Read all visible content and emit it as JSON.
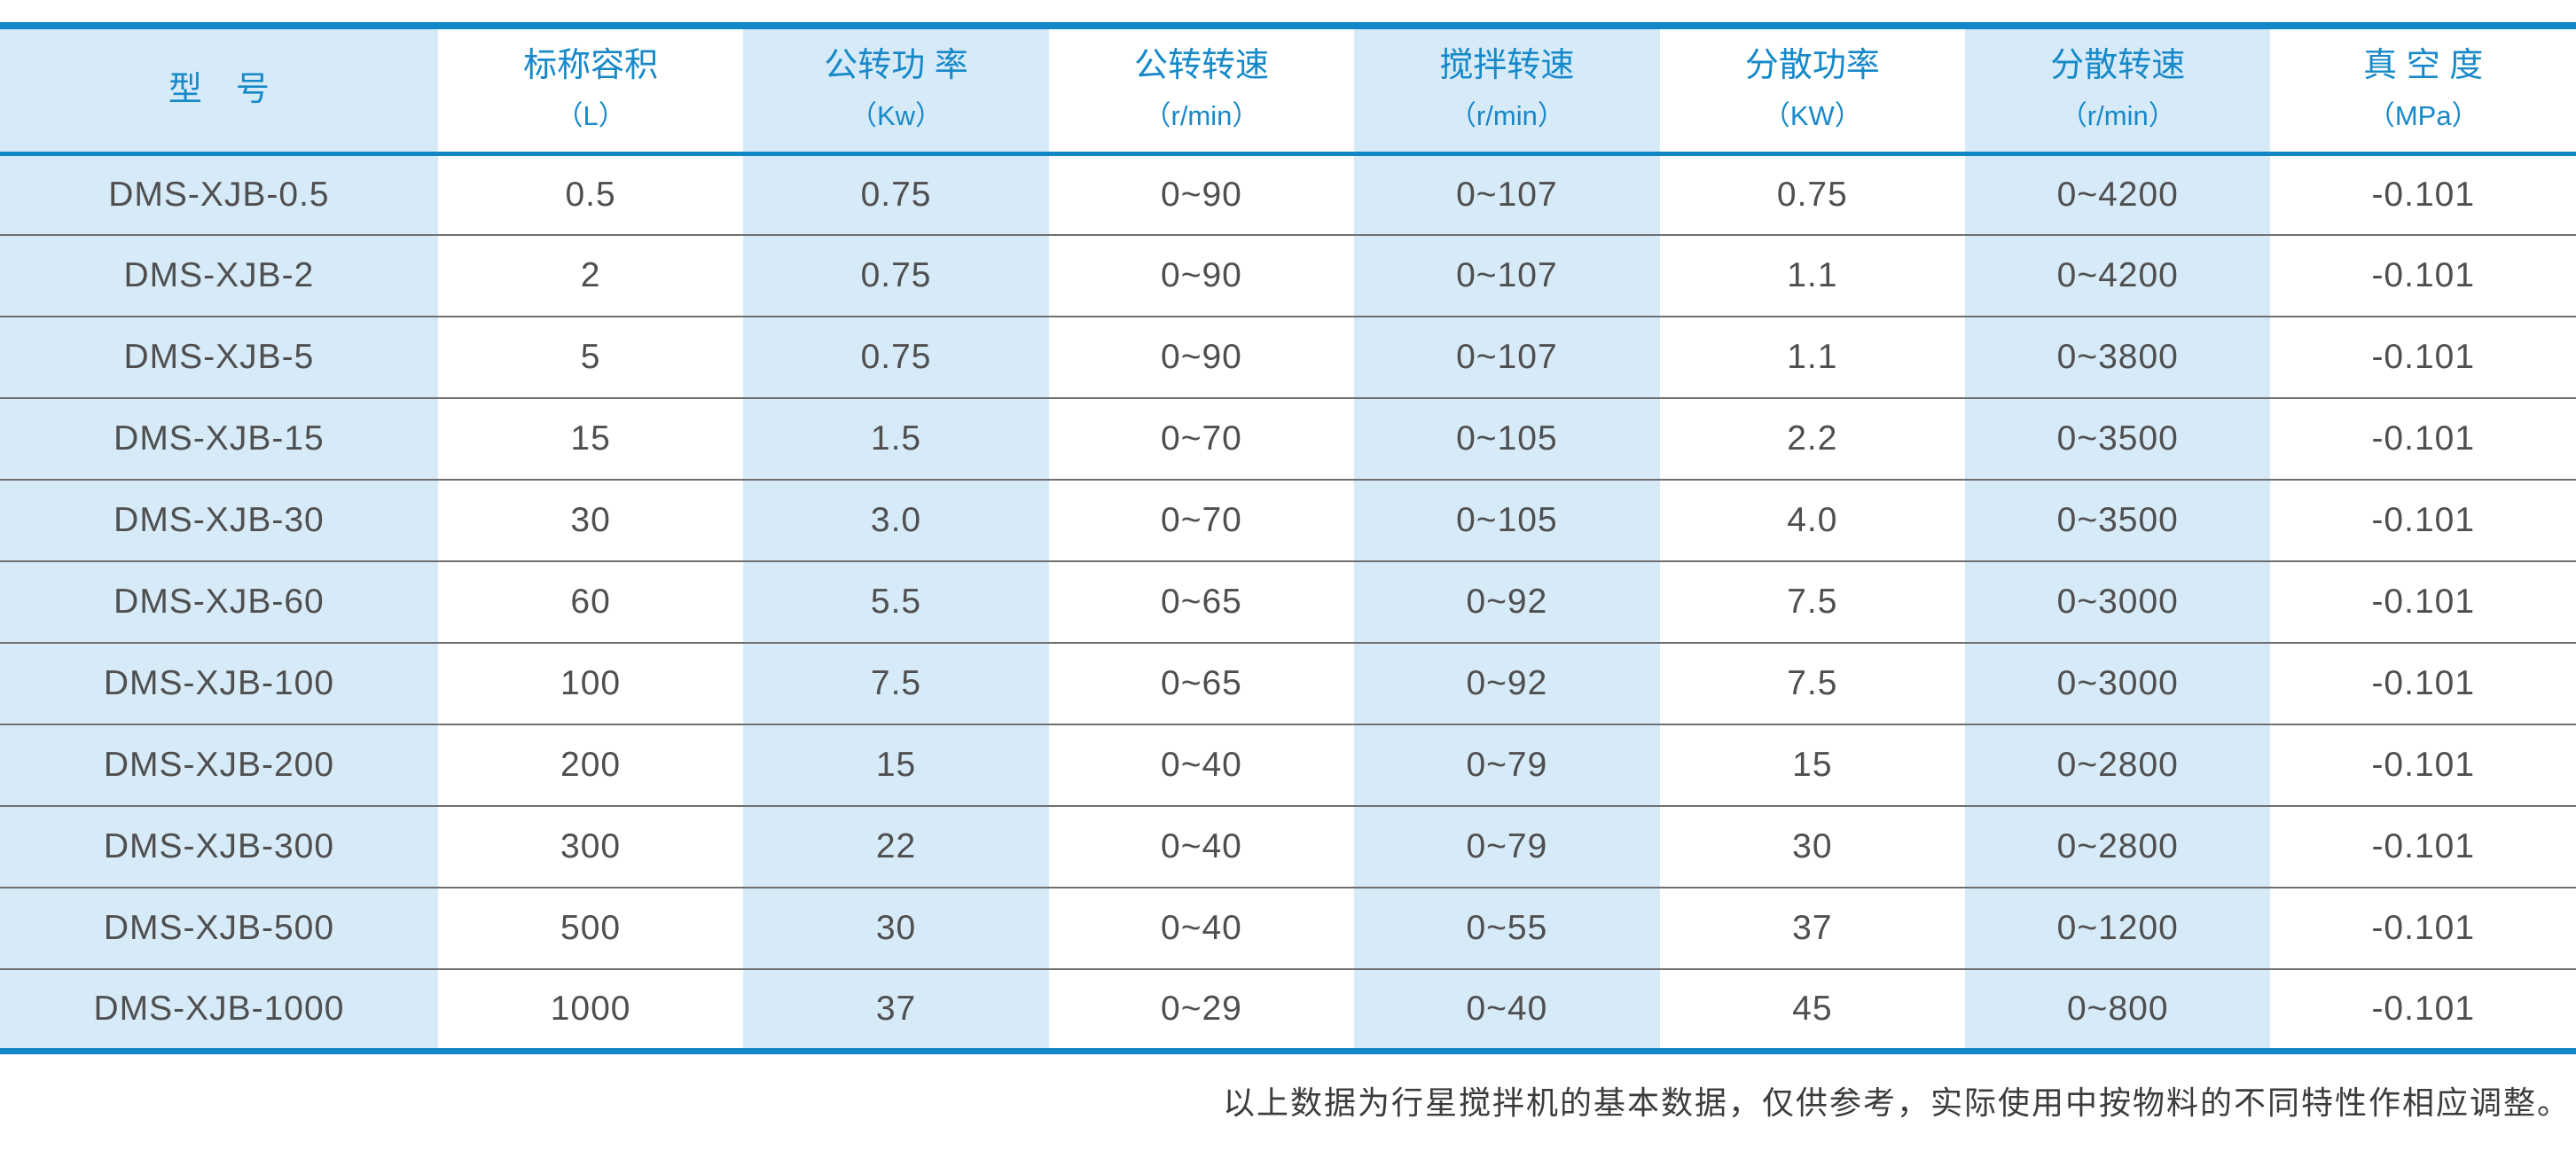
{
  "colors": {
    "accent_blue": "#1287c8",
    "header_text": "#1789c9",
    "stripe_blue": "#d6eaf8",
    "row_line": "#6f6f6f",
    "data_text": "#4f4f4f",
    "footer_text": "#3c3c3c"
  },
  "chart_data": {
    "type": "table",
    "columns": [
      {
        "label": "型　号",
        "unit": ""
      },
      {
        "label": "标称容积",
        "unit": "（L）"
      },
      {
        "label": "公转功 率",
        "unit": "（Kw）"
      },
      {
        "label": "公转转速",
        "unit": "（r/min）"
      },
      {
        "label": "搅拌转速",
        "unit": "（r/min）"
      },
      {
        "label": "分散功率",
        "unit": "（KW）"
      },
      {
        "label": "分散转速",
        "unit": "（r/min）"
      },
      {
        "label": "真 空 度",
        "unit": "（MPa）"
      }
    ],
    "rows": [
      [
        "DMS-XJB-0.5",
        "0.5",
        "0.75",
        "0~90",
        "0~107",
        "0.75",
        "0~4200",
        "-0.101"
      ],
      [
        "DMS-XJB-2",
        "2",
        "0.75",
        "0~90",
        "0~107",
        "1.1",
        "0~4200",
        "-0.101"
      ],
      [
        "DMS-XJB-5",
        "5",
        "0.75",
        "0~90",
        "0~107",
        "1.1",
        "0~3800",
        "-0.101"
      ],
      [
        "DMS-XJB-15",
        "15",
        "1.5",
        "0~70",
        "0~105",
        "2.2",
        "0~3500",
        "-0.101"
      ],
      [
        "DMS-XJB-30",
        "30",
        "3.0",
        "0~70",
        "0~105",
        "4.0",
        "0~3500",
        "-0.101"
      ],
      [
        "DMS-XJB-60",
        "60",
        "5.5",
        "0~65",
        "0~92",
        "7.5",
        "0~3000",
        "-0.101"
      ],
      [
        "DMS-XJB-100",
        "100",
        "7.5",
        "0~65",
        "0~92",
        "7.5",
        "0~3000",
        "-0.101"
      ],
      [
        "DMS-XJB-200",
        "200",
        "15",
        "0~40",
        "0~79",
        "15",
        "0~2800",
        "-0.101"
      ],
      [
        "DMS-XJB-300",
        "300",
        "22",
        "0~40",
        "0~79",
        "30",
        "0~2800",
        "-0.101"
      ],
      [
        "DMS-XJB-500",
        "500",
        "30",
        "0~40",
        "0~55",
        "37",
        "0~1200",
        "-0.101"
      ],
      [
        "DMS-XJB-1000",
        "1000",
        "37",
        "0~29",
        "0~40",
        "45",
        "0~800",
        "-0.101"
      ]
    ],
    "note": "以上数据为行星搅拌机的基本数据，仅供参考，实际使用中按物料的不同特性作相应调整。",
    "layout_hints": {
      "stripe_pattern": "alternating columns (even columns light blue, odd columns white)",
      "grid": "horizontal rules only"
    }
  },
  "footer": {
    "note": "以上数据为行星搅拌机的基本数据，仅供参考，实际使用中按物料的不同特性作相应调整。"
  }
}
